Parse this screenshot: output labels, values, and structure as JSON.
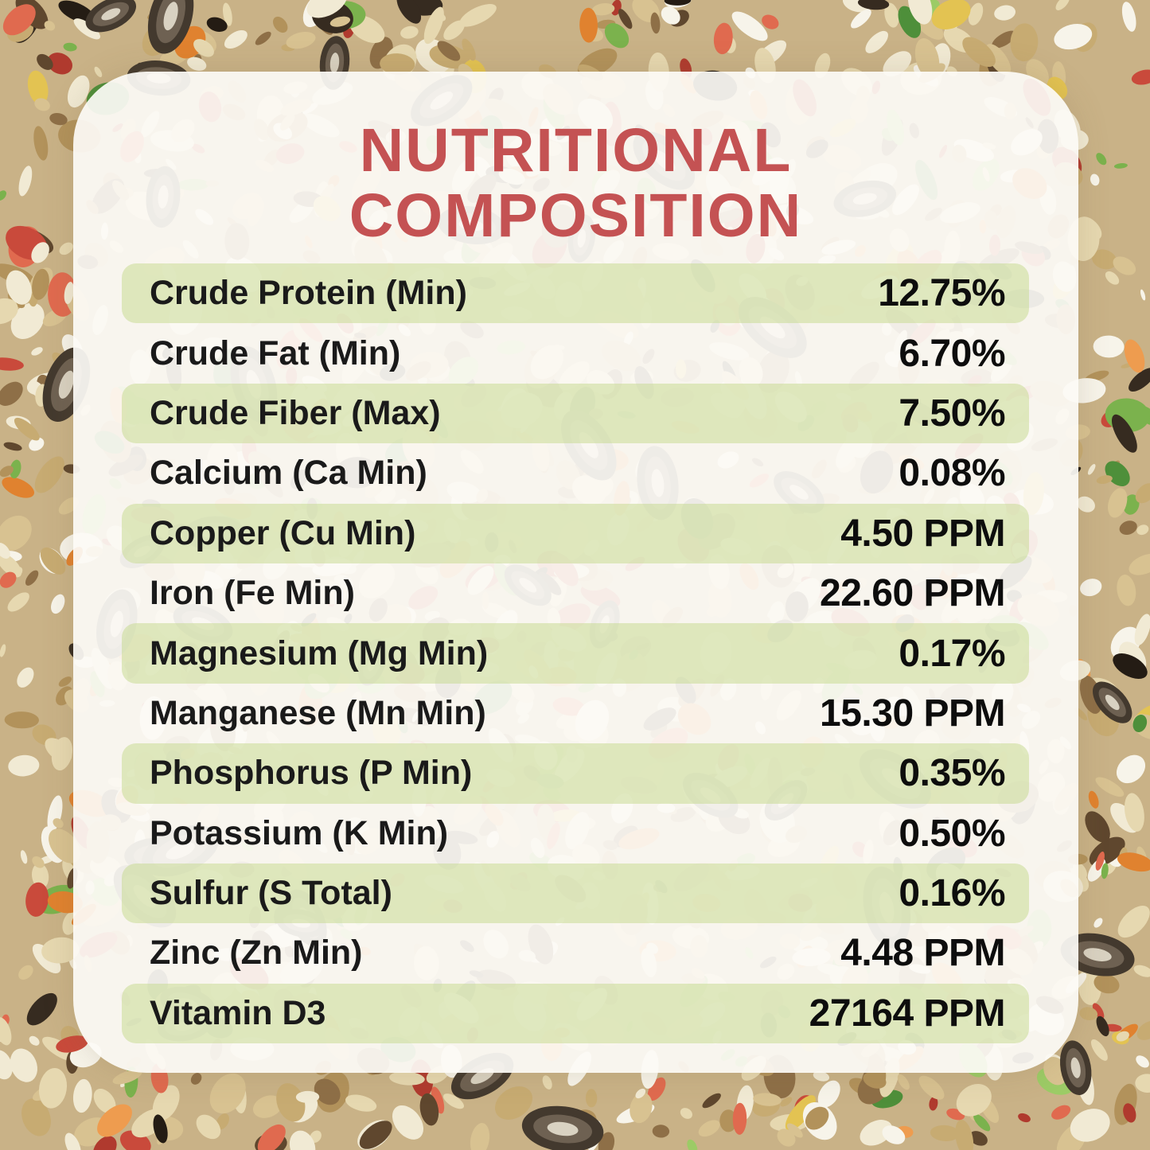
{
  "colors": {
    "accent_red": "#C45253",
    "stripe_green": "#DFE7C5",
    "card_background": "#FAF7F2",
    "text": "#1A1A1A"
  },
  "card": {
    "title_line1": "NUTRITIONAL",
    "title_line2": "COMPOSITION"
  },
  "table": {
    "rows": [
      {
        "label": "Crude Protein (Min)",
        "value": "12.75%"
      },
      {
        "label": "Crude Fat (Min)",
        "value": "6.70%"
      },
      {
        "label": "Crude Fiber (Max)",
        "value": "7.50%"
      },
      {
        "label": "Calcium (Ca Min)",
        "value": "0.08%"
      },
      {
        "label": "Copper (Cu Min)",
        "value": "4.50 PPM"
      },
      {
        "label": "Iron (Fe Min)",
        "value": "22.60 PPM"
      },
      {
        "label": "Magnesium (Mg Min)",
        "value": "0.17%"
      },
      {
        "label": "Manganese (Mn Min)",
        "value": "15.30 PPM"
      },
      {
        "label": "Phosphorus (P Min)",
        "value": "0.35%"
      },
      {
        "label": "Potassium (K Min)",
        "value": "0.50%"
      },
      {
        "label": "Sulfur (S Total)",
        "value": "0.16%"
      },
      {
        "label": "Zinc (Zn Min)",
        "value": "4.48 PPM"
      },
      {
        "label": "Vitamin D3",
        "value": "27164 PPM"
      }
    ]
  }
}
